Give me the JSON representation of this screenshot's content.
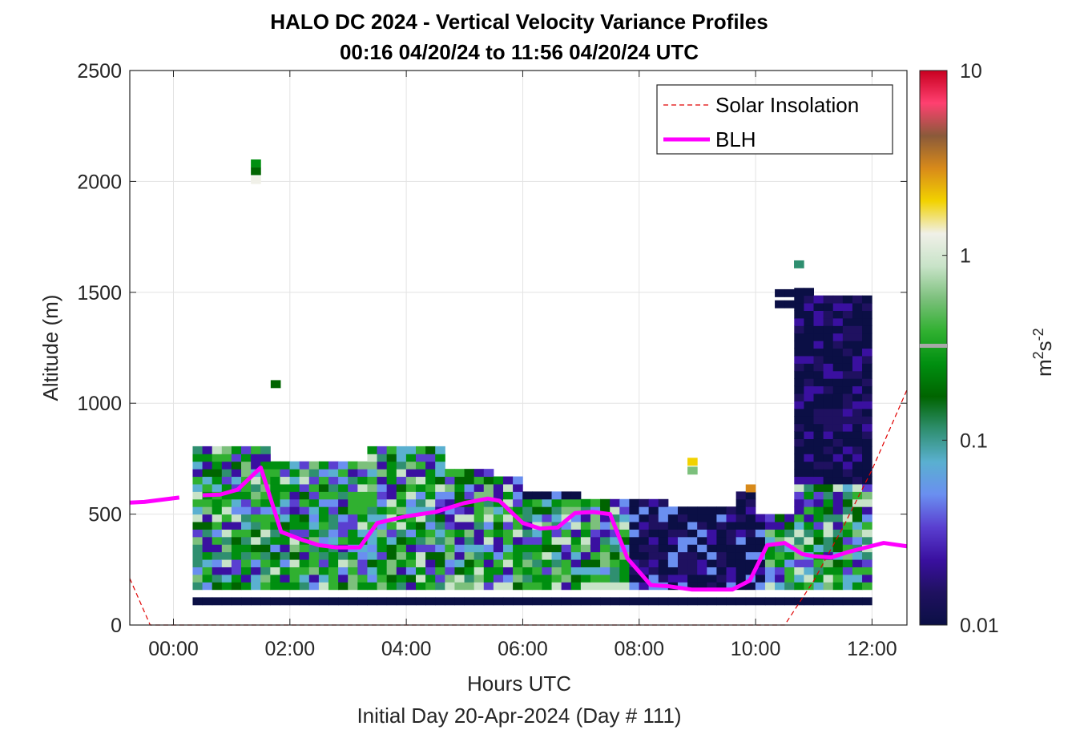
{
  "title_line1": "HALO DC 2024 - Vertical Velocity Variance Profiles",
  "title_line2": "00:16 04/20/24 to 11:56 04/20/24  UTC",
  "xlabel": "Hours UTC",
  "subtitle": "Initial Day 20-Apr-2024 (Day # 111)",
  "ylabel": "Altitude (m)",
  "x_ticks": [
    "00:00",
    "02:00",
    "04:00",
    "06:00",
    "08:00",
    "10:00",
    "12:00"
  ],
  "y_ticks": [
    "0",
    "500",
    "1000",
    "1500",
    "2000",
    "2500"
  ],
  "colorbar": {
    "ticks": [
      "0.01",
      "0.1",
      "1",
      "10"
    ],
    "label_base": "m",
    "label_exp1": "2",
    "label_mid": "s",
    "label_exp2": "-2",
    "scale": "log",
    "range": [
      0.01,
      10
    ]
  },
  "legend": {
    "solar_label": "Solar Insolation",
    "blh_label": "BLH",
    "position": "top-right"
  },
  "colors": {
    "blh": "#ff00ff",
    "solar": "#e00000",
    "grid": "#e3e3e3",
    "colormap": [
      "#0b0f45",
      "#1f1160",
      "#3a10a0",
      "#5a3fd0",
      "#6a8ff0",
      "#5ab0d0",
      "#2f8f70",
      "#006400",
      "#008f10",
      "#30b030",
      "#7cc07c",
      "#c8e3c8",
      "#f0f0e8",
      "#f2d200",
      "#d88a1a",
      "#8a5a3a",
      "#ff4070",
      "#c80020"
    ]
  },
  "chart_data": {
    "type": "heatmap",
    "x_unit": "hours UTC",
    "y_unit": "m",
    "xlim": [
      -0.75,
      12.6
    ],
    "ylim": [
      0,
      2500
    ],
    "grid": true,
    "x_ticks": [
      0,
      2,
      4,
      6,
      8,
      10,
      12
    ],
    "y_ticks": [
      0,
      500,
      1000,
      1500,
      2000,
      2500
    ],
    "color_scale": "log",
    "clim": [
      0.01,
      10
    ],
    "blh": {
      "name": "BLH",
      "x": [
        -0.75,
        -0.5,
        -0.2,
        0.1,
        0.5,
        0.8,
        1.1,
        1.5,
        1.85,
        2.2,
        2.5,
        2.8,
        3.2,
        3.5,
        4.0,
        4.5,
        5.0,
        5.4,
        5.6,
        6.0,
        6.3,
        6.6,
        6.9,
        7.2,
        7.5,
        7.8,
        8.2,
        8.5,
        8.9,
        9.2,
        9.6,
        9.9,
        10.2,
        10.5,
        10.8,
        11.0,
        11.3,
        11.6,
        11.9,
        12.2,
        12.6
      ],
      "y": [
        552,
        555,
        565,
        575,
        585,
        588,
        610,
        710,
        420,
        385,
        360,
        350,
        350,
        460,
        490,
        510,
        550,
        570,
        560,
        460,
        435,
        440,
        505,
        510,
        500,
        300,
        180,
        175,
        160,
        160,
        160,
        200,
        360,
        370,
        320,
        310,
        305,
        330,
        350,
        370,
        355
      ]
    },
    "solar_insolation": {
      "name": "Solar Insolation",
      "x": [
        -0.75,
        -0.4,
        0.0,
        2.0,
        4.0,
        6.0,
        8.0,
        10.0,
        10.5,
        11.0,
        11.5,
        12.0,
        12.6
      ],
      "y": [
        210,
        0,
        0,
        0,
        0,
        0,
        0,
        0,
        0,
        200,
        440,
        700,
        1060
      ]
    },
    "cells_note": "value in m^2 s^-2, approximate per-column profiles",
    "columns": [
      {
        "t": 0.33,
        "base": 125,
        "top": 800
      },
      {
        "t": 1.33,
        "base": 125,
        "top": 2100
      },
      {
        "t": 3.33,
        "base": 125,
        "top": 800
      },
      {
        "t": 5.33,
        "base": 125,
        "top": 700
      },
      {
        "t": 7.33,
        "base": 125,
        "top": 600
      },
      {
        "t": 8.83,
        "base": 125,
        "top": 750
      },
      {
        "t": 10.66,
        "base": 125,
        "top": 1650
      },
      {
        "t": 11.83,
        "base": 125,
        "top": 1550
      }
    ]
  }
}
